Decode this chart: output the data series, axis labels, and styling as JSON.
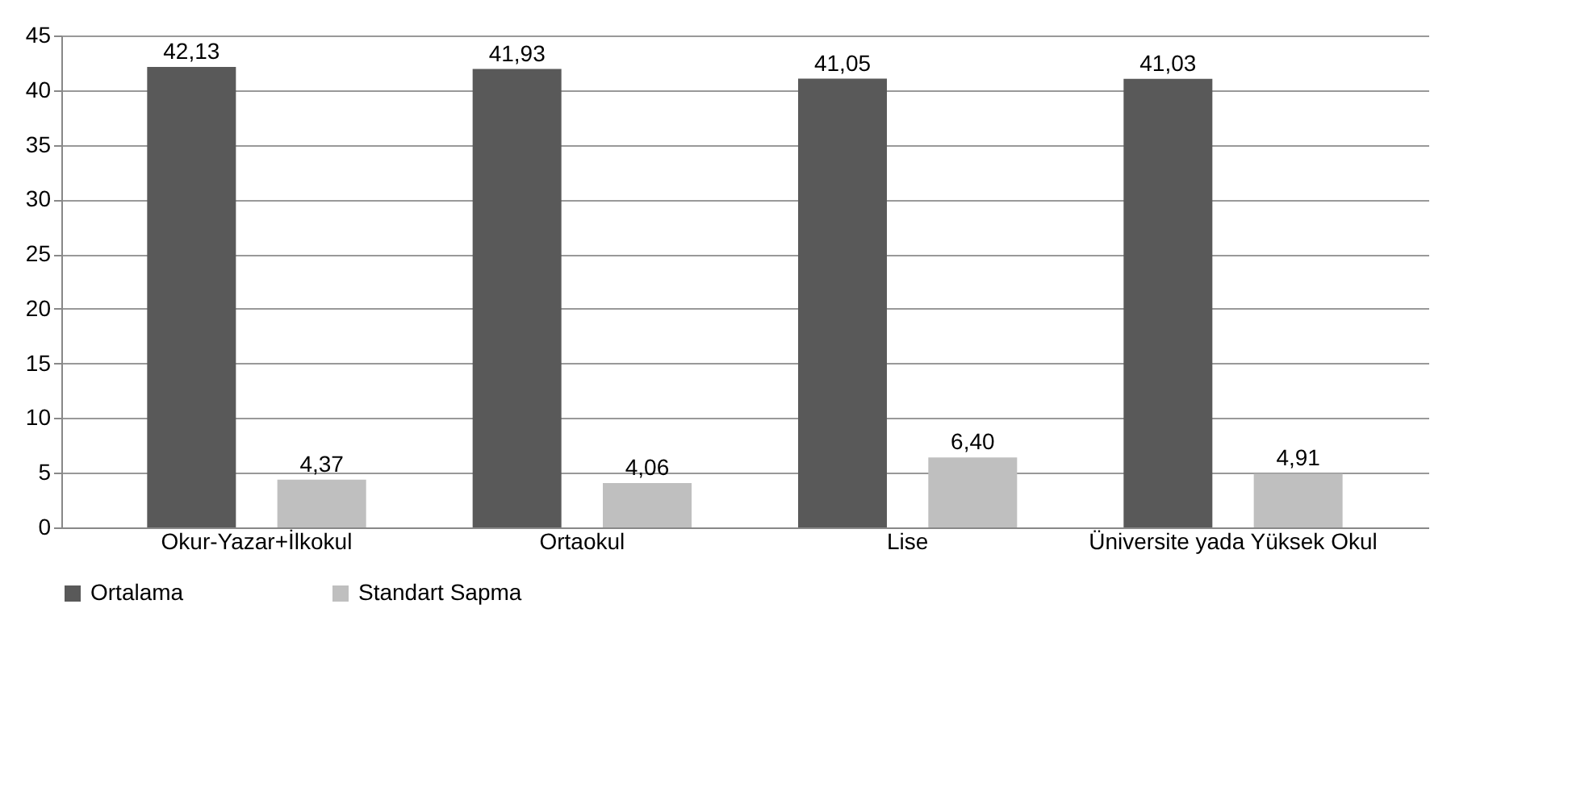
{
  "chart_data": {
    "type": "bar",
    "categories": [
      "Okur-Yazar+İlkokul",
      "Ortaokul",
      "Lise",
      "Üniversite yada Yüksek Okul"
    ],
    "series": [
      {
        "name": "Ortalama",
        "color": "#595959",
        "values": [
          42.13,
          41.93,
          41.05,
          41.03
        ],
        "value_labels": [
          "42,13",
          "41,93",
          "41,05",
          "41,03"
        ]
      },
      {
        "name": "Standart Sapma",
        "color": "#bfbfbf",
        "values": [
          4.37,
          4.06,
          6.4,
          4.91
        ],
        "value_labels": [
          "4,37",
          "4,06",
          "6,40",
          "4,91"
        ]
      }
    ],
    "ylim": [
      0,
      45
    ],
    "yticks": [
      0,
      5,
      10,
      15,
      20,
      25,
      30,
      35,
      40,
      45
    ],
    "grid": "y",
    "legend": "bottom"
  }
}
